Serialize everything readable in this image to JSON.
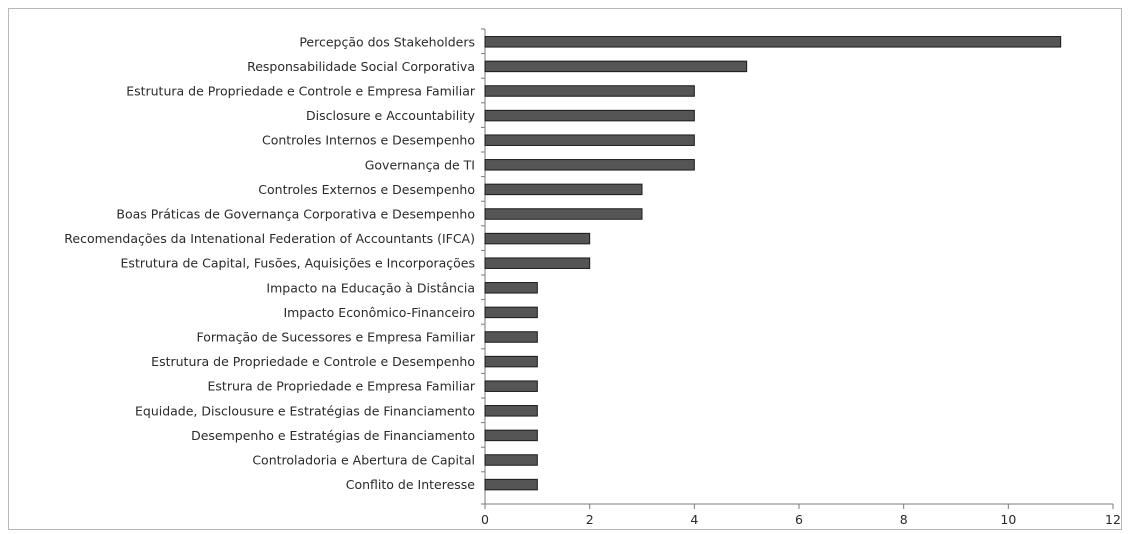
{
  "chart_data": {
    "type": "bar",
    "orientation": "horizontal",
    "title": "",
    "xlabel": "",
    "ylabel": "",
    "categories": [
      "Percepção dos Stakeholders",
      "Responsabilidade Social Corporativa",
      "Estrutura de Propriedade e Controle e Empresa Familiar",
      "Disclosure e Accountability",
      "Controles Internos e Desempenho",
      "Governança de TI",
      "Controles Externos e Desempenho",
      "Boas Práticas de Governança Corporativa e Desempenho",
      "Recomendações da Intenational Federation of Accountants (IFCA)",
      "Estrutura de Capital, Fusões, Aquisições e Incorporações",
      "Impacto na Educação à Distância",
      "Impacto Econômico-Financeiro",
      "Formação de Sucessores e Empresa Familiar",
      "Estrutura de Propriedade e Controle e Desempenho",
      "Estrura de Propriedade e Empresa Familiar",
      "Equidade, Disclousure e Estratégias de Financiamento",
      "Desempenho e Estratégias de Financiamento",
      "Controladoria e Abertura de Capital",
      "Conflito de Interesse"
    ],
    "values": [
      11,
      5,
      4,
      4,
      4,
      4,
      3,
      3,
      2,
      2,
      1,
      1,
      1,
      1,
      1,
      1,
      1,
      1,
      1
    ],
    "xlim": [
      0,
      12
    ],
    "xticks": [
      "0",
      "2",
      "4",
      "6",
      "8",
      "10",
      "12"
    ],
    "grid": false,
    "legend": "none",
    "bar_color": "#555555",
    "bar_edge_color": "#1a1a1a"
  }
}
